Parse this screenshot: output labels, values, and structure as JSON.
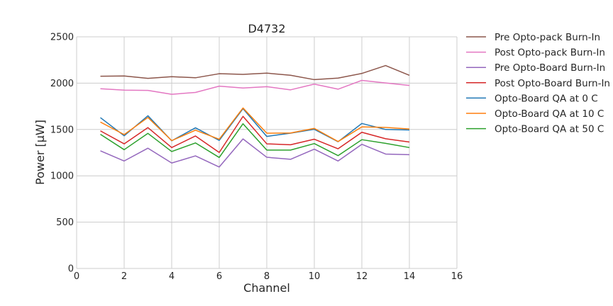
{
  "chart_data": {
    "type": "line",
    "title": "D4732",
    "xlabel": "Channel",
    "ylabel": "Power [μW]",
    "xlim": [
      0,
      16
    ],
    "ylim": [
      0,
      2500
    ],
    "xticks": [
      0,
      2,
      4,
      6,
      8,
      10,
      12,
      14,
      16
    ],
    "yticks": [
      0,
      500,
      1000,
      1500,
      2000,
      2500
    ],
    "grid": true,
    "legend_position": "outside-right",
    "x": [
      1,
      2,
      3,
      4,
      5,
      6,
      7,
      8,
      9,
      10,
      11,
      12,
      13,
      14
    ],
    "series": [
      {
        "name": "Pre Opto-pack Burn-In",
        "color": "#8c564b",
        "values": [
          2075,
          2078,
          2052,
          2070,
          2058,
          2102,
          2095,
          2108,
          2085,
          2038,
          2055,
          2105,
          2190,
          2085
        ]
      },
      {
        "name": "Post Opto-pack Burn-In",
        "color": "#e377c2",
        "values": [
          1940,
          1925,
          1922,
          1880,
          1900,
          1968,
          1948,
          1962,
          1928,
          1990,
          1935,
          2030,
          2002,
          1975
        ]
      },
      {
        "name": "Pre Opto-Board Burn-In",
        "color": "#9467bd",
        "values": [
          1270,
          1160,
          1298,
          1138,
          1215,
          1095,
          1398,
          1200,
          1178,
          1288,
          1160,
          1340,
          1235,
          1228
        ]
      },
      {
        "name": "Post Opto-Board Burn-In",
        "color": "#d62728",
        "values": [
          1485,
          1345,
          1520,
          1305,
          1430,
          1252,
          1642,
          1345,
          1335,
          1395,
          1292,
          1470,
          1400,
          1365
        ]
      },
      {
        "name": "Opto-Board QA at 0 C",
        "color": "#1f77b4",
        "values": [
          1628,
          1432,
          1648,
          1378,
          1518,
          1382,
          1725,
          1425,
          1460,
          1502,
          1368,
          1565,
          1500,
          1495
        ]
      },
      {
        "name": "Opto-Board QA at 10 C",
        "color": "#ff7f0e",
        "values": [
          1580,
          1445,
          1630,
          1380,
          1492,
          1395,
          1732,
          1460,
          1462,
          1512,
          1370,
          1528,
          1522,
          1505
        ]
      },
      {
        "name": "Opto-Board QA at 50 C",
        "color": "#2ca02c",
        "values": [
          1448,
          1282,
          1458,
          1262,
          1355,
          1198,
          1562,
          1278,
          1278,
          1348,
          1218,
          1390,
          1350,
          1305
        ]
      }
    ]
  }
}
